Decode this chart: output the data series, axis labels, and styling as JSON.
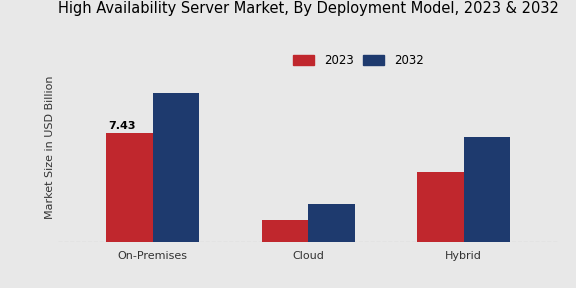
{
  "title": "High Availability Server Market, By Deployment Model, 2023 & 2032",
  "ylabel": "Market Size in USD Billion",
  "categories": [
    "On-Premises",
    "Cloud",
    "Hybrid"
  ],
  "values_2023": [
    7.43,
    1.5,
    4.8
  ],
  "values_2032": [
    10.2,
    2.6,
    7.2
  ],
  "annotation": "7.43",
  "color_2023": "#c0272d",
  "color_2032": "#1e3a6e",
  "legend_labels": [
    "2023",
    "2032"
  ],
  "background_color": "#e8e8e8",
  "bar_width": 0.3,
  "ylim": [
    0,
    13
  ],
  "title_fontsize": 10.5,
  "axis_label_fontsize": 8,
  "tick_fontsize": 8,
  "legend_fontsize": 8.5
}
